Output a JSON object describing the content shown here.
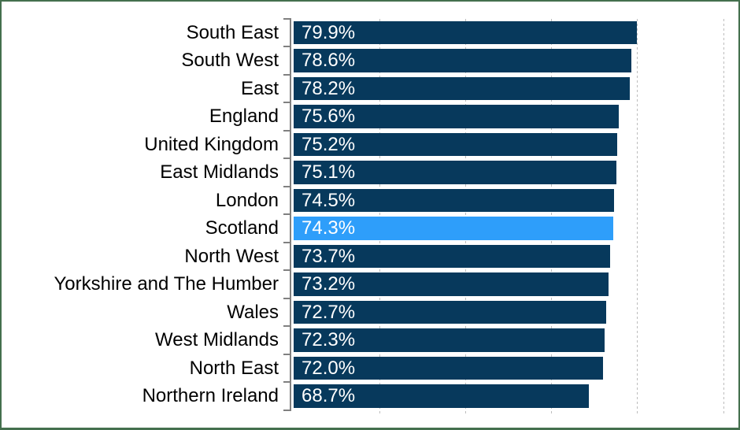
{
  "chart_data": {
    "type": "bar",
    "orientation": "horizontal",
    "title": "",
    "xlabel": "",
    "ylabel": "",
    "categories": [
      "South East",
      "South West",
      "East",
      "England",
      "United Kingdom",
      "East Midlands",
      "London",
      "Scotland",
      "North West",
      "Yorkshire and The Humber",
      "Wales",
      "West Midlands",
      "North East",
      "Northern Ireland"
    ],
    "values": [
      79.9,
      78.6,
      78.2,
      75.6,
      75.2,
      75.1,
      74.5,
      74.3,
      73.7,
      73.2,
      72.7,
      72.3,
      72.0,
      68.7
    ],
    "value_labels": [
      "79.9%",
      "78.6%",
      "78.2%",
      "75.6%",
      "75.2%",
      "75.1%",
      "74.5%",
      "74.3%",
      "73.7%",
      "73.2%",
      "72.7%",
      "72.3%",
      "72.0%",
      "68.7%"
    ],
    "highlight_category": "Scotland",
    "highlight_index": 7,
    "xlim": [
      0,
      100
    ],
    "gridlines_pct": [
      20,
      40,
      60,
      80,
      100
    ],
    "grid": "dashed-vertical",
    "legend": "none",
    "colors": {
      "bar": "#07395C",
      "highlight_bar": "#2E9EFA",
      "value_text": "#FFFFFF",
      "category_text": "#000000",
      "gridline": "#BDBDBD",
      "axis": "#808080",
      "frame_border": "#44704E",
      "background": "#FFFFFF"
    }
  }
}
